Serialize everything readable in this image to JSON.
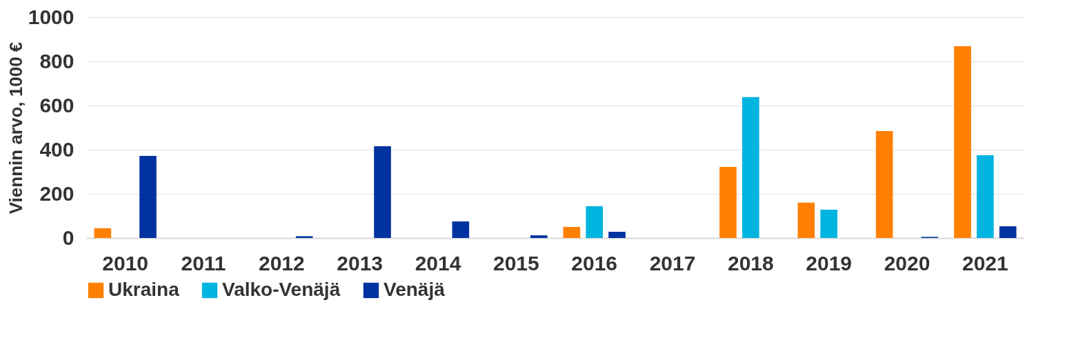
{
  "chart_data": {
    "type": "bar",
    "ylabel": "Viennin arvo, 1000 €",
    "categories": [
      "2010",
      "2011",
      "2012",
      "2013",
      "2014",
      "2015",
      "2016",
      "2017",
      "2018",
      "2019",
      "2020",
      "2021"
    ],
    "series": [
      {
        "name": "Ukraina",
        "color": "#ff8000",
        "values": [
          44,
          null,
          null,
          null,
          null,
          null,
          50,
          null,
          322,
          160,
          484,
          869
        ]
      },
      {
        "name": "Valko-Venäjä",
        "color": "#00b4e0",
        "values": [
          null,
          null,
          null,
          null,
          null,
          null,
          144,
          null,
          638,
          128,
          null,
          375
        ]
      },
      {
        "name": "Venäjä",
        "color": "#0033a0",
        "values": [
          372,
          null,
          8,
          416,
          75,
          12,
          28,
          null,
          null,
          null,
          5,
          53
        ]
      }
    ],
    "ylim": [
      0,
      1000
    ],
    "yticks": [
      0,
      200,
      400,
      600,
      800,
      1000
    ],
    "grid": "y",
    "legend": "bottom"
  }
}
